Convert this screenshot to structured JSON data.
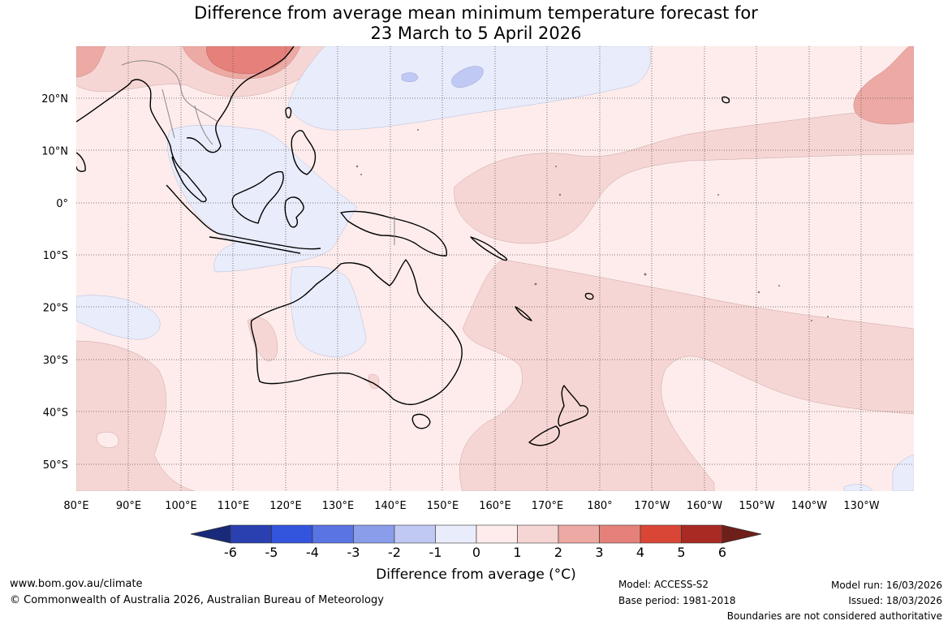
{
  "title": {
    "line1": "Difference from average mean minimum temperature forecast for",
    "line2": "23 March to 5 April 2026"
  },
  "map": {
    "lon_labels": [
      "80°E",
      "90°E",
      "100°E",
      "110°E",
      "120°E",
      "130°E",
      "140°E",
      "150°E",
      "160°E",
      "170°E",
      "180°",
      "170°W",
      "160°W",
      "150°W",
      "140°W",
      "130°W"
    ],
    "lat_labels": [
      "20°N",
      "10°N",
      "0°",
      "10°S",
      "20°S",
      "30°S",
      "40°S",
      "50°S"
    ]
  },
  "legend": {
    "title": "Difference from average (°C)",
    "ticks": [
      "-6",
      "-5",
      "-4",
      "-3",
      "-2",
      "-1",
      "0",
      "1",
      "2",
      "3",
      "4",
      "5",
      "6"
    ],
    "colors": [
      "#1a2a7a",
      "#2a40b0",
      "#3355dd",
      "#5b74e3",
      "#8a9deb",
      "#c0c9f3",
      "#e9ecfb",
      "#fdeceb",
      "#f6d6d4",
      "#eda9a4",
      "#e5817a",
      "#d94636",
      "#a82a22",
      "#6e1f1a"
    ]
  },
  "footer": {
    "website": "www.bom.gov.au/climate",
    "copyright": "© Commonwealth of Australia 2026, Australian Bureau of Meteorology",
    "model": "Model: ACCESS-S2",
    "base_period": "Base period: 1981-2018",
    "model_run": "Model run: 16/03/2026",
    "issued": "Issued: 18/03/2026",
    "disclaimer": "Boundaries are not considered authoritative"
  }
}
